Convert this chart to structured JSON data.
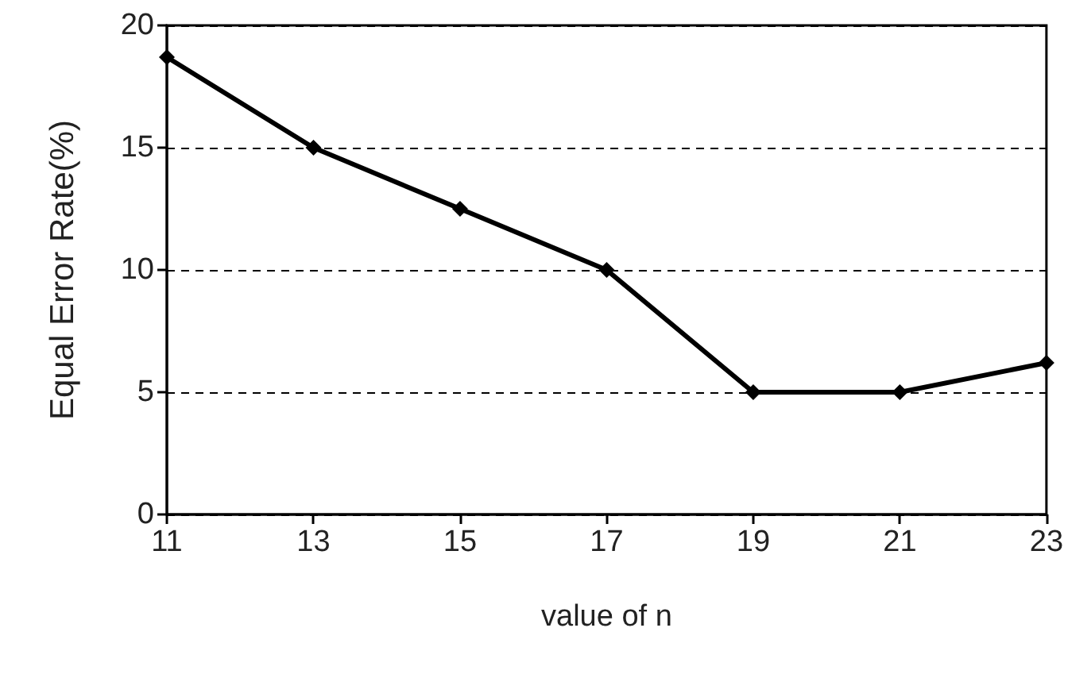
{
  "chart_data": {
    "type": "line",
    "xlabel": "value of n",
    "ylabel": "Equal Error Rate(%)",
    "x": [
      11,
      13,
      15,
      17,
      19,
      21,
      23
    ],
    "series": [
      {
        "color": "#000000",
        "values": [
          18.7,
          15,
          12.5,
          10,
          5,
          5,
          6.2
        ]
      }
    ],
    "xlim": [
      11,
      23
    ],
    "xticks": [
      11,
      13,
      15,
      17,
      19,
      21,
      23
    ],
    "ylim": [
      0,
      20
    ],
    "yticks": [
      0,
      5,
      10,
      15,
      20
    ],
    "grid": "y",
    "marker": "diamond",
    "line_style": "solid"
  }
}
